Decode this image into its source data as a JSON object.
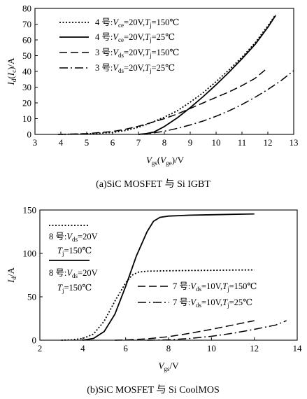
{
  "chart_data": [
    {
      "type": "line",
      "caption": "(a)SiC MOSFET 与 Si IGBT",
      "xlabel": "V_gs(V_ge)/V",
      "ylabel": "I_d(I_c)/A",
      "xlim": [
        3,
        13
      ],
      "ylim": [
        0,
        80
      ],
      "xticks": [
        3,
        4,
        5,
        6,
        7,
        8,
        9,
        10,
        11,
        12,
        13
      ],
      "yticks": [
        0,
        10,
        20,
        30,
        40,
        50,
        60,
        70,
        80
      ],
      "grid": false,
      "legend_position": "top-left",
      "series": [
        {
          "name": "4 号: V_ce=20V, T_j=150℃",
          "style": "dotted",
          "x": [
            3.9,
            5,
            6,
            6.5,
            7,
            7.5,
            8,
            8.5,
            9,
            9.5,
            10,
            10.5,
            11,
            11.5,
            12,
            12.3
          ],
          "y": [
            0,
            0.3,
            1.2,
            2.5,
            4.5,
            7.5,
            11,
            15,
            20.5,
            26.5,
            33.5,
            41,
            49,
            58,
            69,
            76
          ]
        },
        {
          "name": "4 号: V_ce=20V, T_j=25℃",
          "style": "solid",
          "x": [
            7,
            7.3,
            7.6,
            8,
            8.5,
            9,
            9.5,
            10,
            10.5,
            11,
            11.5,
            12,
            12.3
          ],
          "y": [
            0,
            0.5,
            1.5,
            5,
            10.5,
            17,
            24,
            31.5,
            39.5,
            48,
            57,
            68,
            75.5
          ]
        },
        {
          "name": "3 号: V_ds=20V, T_j=150℃",
          "style": "dashed",
          "x": [
            3.9,
            5,
            6,
            6.5,
            7,
            7.5,
            8,
            8.5,
            9,
            9.5,
            10,
            10.5,
            11,
            11.5,
            11.9
          ],
          "y": [
            0,
            0.5,
            1.8,
            3.3,
            5.2,
            7.5,
            10,
            13,
            16.5,
            20,
            23.5,
            27,
            31,
            35.5,
            41
          ]
        },
        {
          "name": "3 号: V_ds=20V, T_j=25℃",
          "style": "dashdot",
          "x": [
            7,
            7.5,
            8,
            8.5,
            9,
            9.5,
            10,
            10.5,
            11,
            11.5,
            12,
            12.5,
            13
          ],
          "y": [
            0,
            0.8,
            2,
            3.8,
            6,
            8.5,
            11.5,
            15,
            19,
            23.5,
            28.5,
            34,
            40.5
          ]
        }
      ],
      "legend": [
        {
          "num": "4 号",
          "vsym": "V",
          "vsub": "ce",
          "vval": "=20V",
          "tsym": "T",
          "tsub": "j",
          "tval": "=150℃"
        },
        {
          "num": "4 号",
          "vsym": "V",
          "vsub": "ce",
          "vval": "=20V",
          "tsym": "T",
          "tsub": "j",
          "tval": "=25℃"
        },
        {
          "num": "3 号",
          "vsym": "V",
          "vsub": "ds",
          "vval": "=20V",
          "tsym": "T",
          "tsub": "j",
          "tval": "=150℃"
        },
        {
          "num": "3 号",
          "vsym": "V",
          "vsub": "ds",
          "vval": "=20V",
          "tsym": "T",
          "tsub": "j",
          "tval": "=25℃"
        }
      ]
    },
    {
      "type": "line",
      "caption": "(b)SiC MOSFET 与 Si CoolMOS",
      "xlabel": "V_gs/V",
      "ylabel": "I_d/A",
      "xlim": [
        2,
        14
      ],
      "ylim": [
        0,
        150
      ],
      "xticks": [
        2,
        4,
        6,
        8,
        10,
        12,
        14
      ],
      "yticks": [
        0,
        50,
        100,
        150
      ],
      "grid": false,
      "legend_position": "left and lower-right",
      "series": [
        {
          "name": "8 号: V_ds=20V, T_j=150℃",
          "style": "dotted",
          "x": [
            3,
            3.5,
            4,
            4.5,
            5,
            5.5,
            6,
            6.3,
            6.6,
            7,
            8,
            9,
            10,
            11,
            12
          ],
          "y": [
            0,
            0.5,
            2,
            7,
            22,
            45,
            66,
            75,
            78.5,
            79.5,
            80,
            80.3,
            80.5,
            80.8,
            81
          ]
        },
        {
          "name": "8 号: V_ds=20V, T_j=150℃",
          "style": "solid",
          "x": [
            4,
            4.5,
            5,
            5.5,
            6,
            6.5,
            7,
            7.3,
            7.6,
            8,
            9,
            10,
            11,
            12
          ],
          "y": [
            0,
            2,
            10,
            30,
            62,
            97,
            125,
            137,
            141.5,
            143,
            144,
            144.5,
            145,
            145.5
          ]
        },
        {
          "name": "7 号: V_ds=10V, T_j=150℃",
          "style": "dashed",
          "x": [
            5.5,
            6,
            7,
            8,
            9,
            10,
            11,
            12
          ],
          "y": [
            0,
            0.3,
            1.5,
            4,
            8,
            12.5,
            17.5,
            22.5
          ]
        },
        {
          "name": "7 号: V_ds=10V, T_j=25℃",
          "style": "dashdot",
          "x": [
            7,
            8,
            9,
            10,
            11,
            12,
            13,
            13.5
          ],
          "y": [
            0,
            0.5,
            2,
            4.5,
            8,
            12.5,
            17.5,
            22.5
          ]
        }
      ],
      "legend": [
        {
          "num": "8 号",
          "vsym": "V",
          "vsub": "ds",
          "vval": "=20V",
          "tsym": "T",
          "tsub": "j",
          "tval": "=150℃"
        },
        {
          "num": "8 号",
          "vsym": "V",
          "vsub": "ds",
          "vval": "=20V",
          "tsym": "T",
          "tsub": "j",
          "tval": "=150℃"
        },
        {
          "num": "7 号",
          "vsym": "V",
          "vsub": "ds",
          "vval": "=10V",
          "tsym": "T",
          "tsub": "j",
          "tval": "=150℃"
        },
        {
          "num": "7 号",
          "vsym": "V",
          "vsub": "ds",
          "vval": "=10V",
          "tsym": "T",
          "tsub": "j",
          "tval": "=25℃"
        }
      ]
    }
  ]
}
